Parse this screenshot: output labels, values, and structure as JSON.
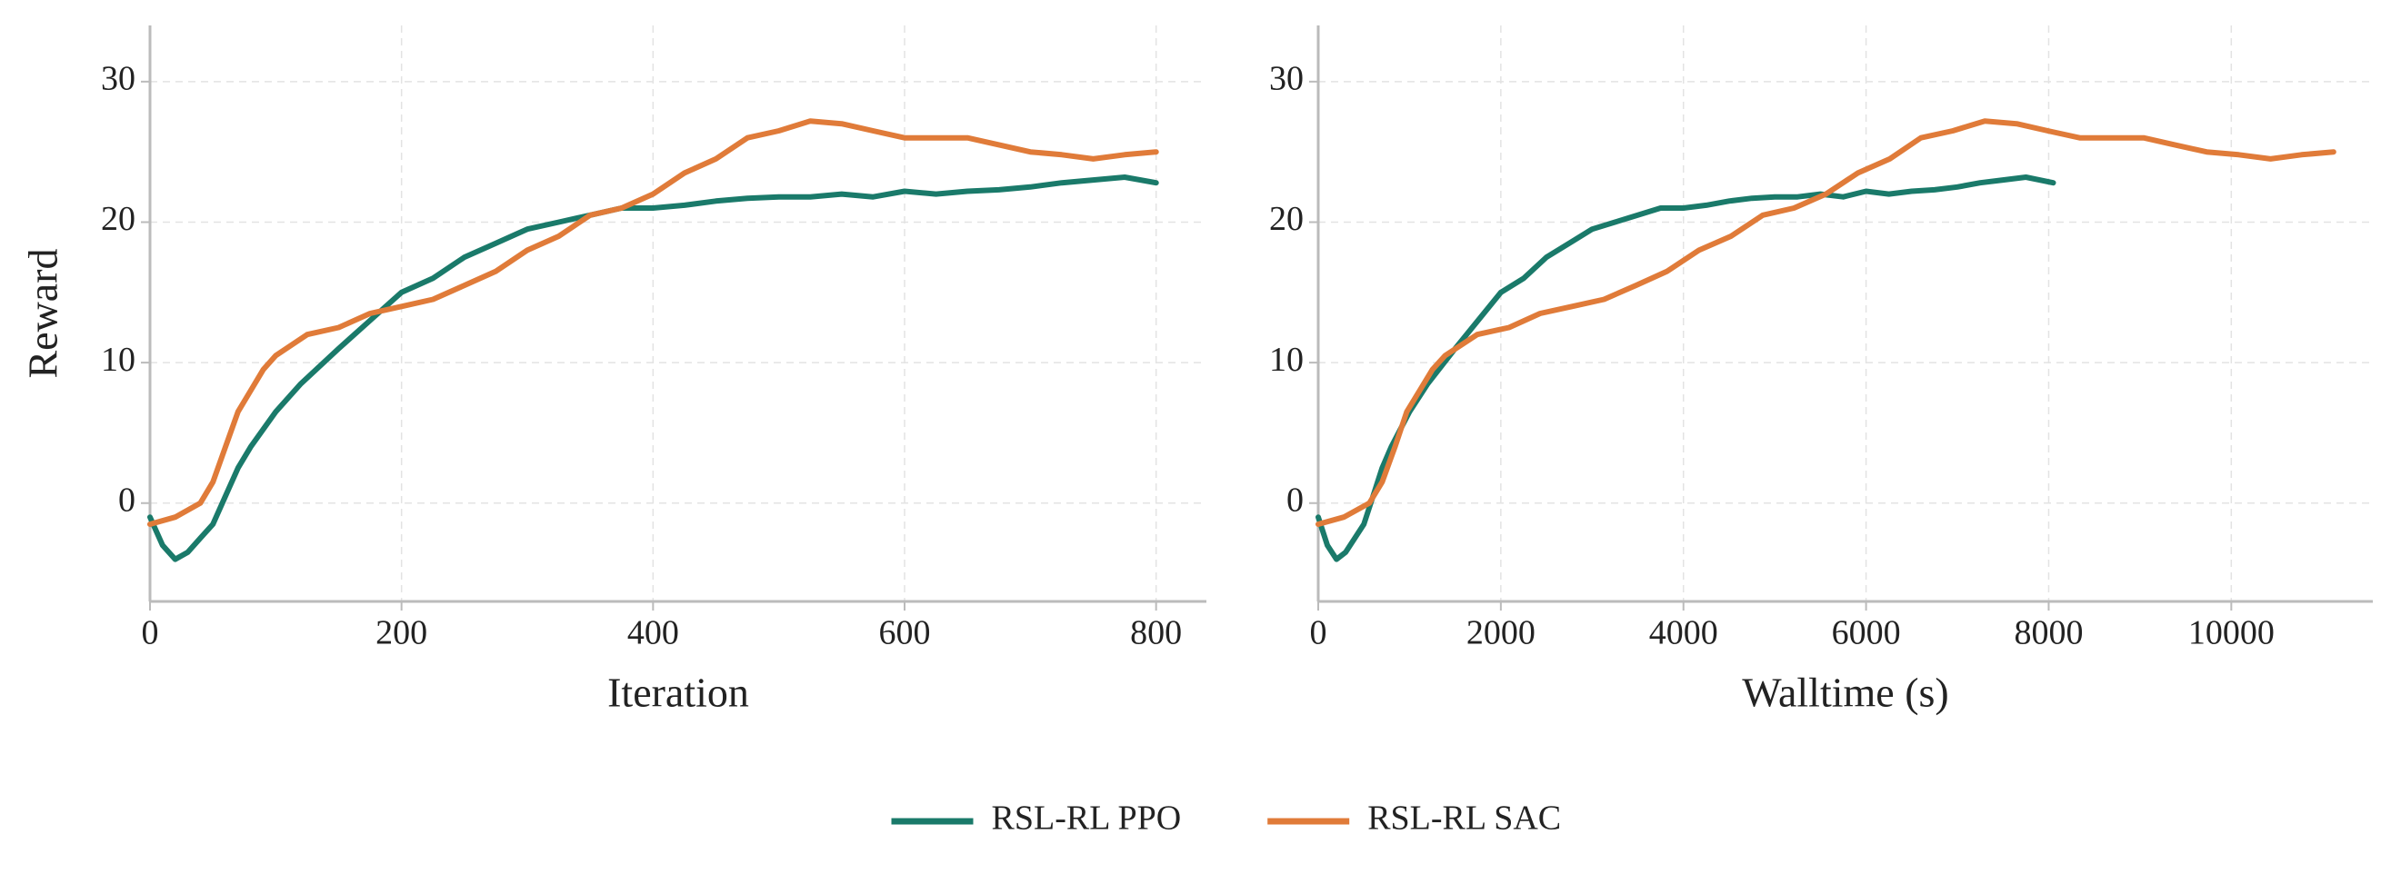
{
  "chart_data": [
    {
      "type": "line",
      "xlabel": "Iteration",
      "ylabel": "Reward",
      "xlim": [
        0,
        840
      ],
      "xticks": [
        0,
        200,
        400,
        600,
        800
      ],
      "ylim": [
        -7,
        34
      ],
      "yticks": [
        0,
        10,
        20,
        30
      ],
      "grid": true,
      "legend": "bottom",
      "series": [
        {
          "name": "RSL-RL PPO",
          "color": "#1a7a6a",
          "x": [
            0,
            10,
            20,
            30,
            40,
            50,
            60,
            70,
            80,
            100,
            120,
            150,
            175,
            200,
            225,
            250,
            275,
            300,
            325,
            350,
            375,
            400,
            425,
            450,
            475,
            500,
            525,
            550,
            575,
            600,
            625,
            650,
            675,
            700,
            725,
            750,
            775,
            800
          ],
          "values": [
            -1,
            -3,
            -4,
            -3.5,
            -2.5,
            -1.5,
            0.5,
            2.5,
            4,
            6.5,
            8.5,
            11,
            13,
            15,
            16,
            17.5,
            18.5,
            19.5,
            20,
            20.5,
            21,
            21,
            21.2,
            21.5,
            21.7,
            21.8,
            21.8,
            22,
            21.8,
            22.2,
            22,
            22.2,
            22.3,
            22.5,
            22.8,
            23,
            23.2,
            22.8
          ]
        },
        {
          "name": "RSL-RL SAC",
          "color": "#e07b39",
          "x": [
            0,
            20,
            40,
            50,
            60,
            70,
            80,
            90,
            100,
            125,
            150,
            175,
            200,
            225,
            250,
            275,
            300,
            325,
            350,
            375,
            400,
            425,
            450,
            475,
            500,
            525,
            550,
            575,
            600,
            625,
            650,
            675,
            700,
            725,
            750,
            775,
            800
          ],
          "values": [
            -1.5,
            -1,
            0,
            1.5,
            4,
            6.5,
            8,
            9.5,
            10.5,
            12,
            12.5,
            13.5,
            14,
            14.5,
            15.5,
            16.5,
            18,
            19,
            20.5,
            21,
            22,
            23.5,
            24.5,
            26,
            26.5,
            27.2,
            27,
            26.5,
            26,
            26,
            26,
            25.5,
            25,
            24.8,
            24.5,
            24.8,
            25
          ]
        }
      ]
    },
    {
      "type": "line",
      "xlabel": "Walltime (s)",
      "xlim": [
        0,
        11550
      ],
      "xticks": [
        0,
        2000,
        4000,
        6000,
        8000,
        10000
      ],
      "ylim": [
        -7,
        34
      ],
      "yticks": [
        0,
        10,
        20,
        30
      ],
      "grid": true,
      "series": [
        {
          "color": "#1a7a6a",
          "x": [
            0,
            100,
            200,
            300,
            400,
            500,
            600,
            700,
            800,
            1000,
            1200,
            1500,
            1750,
            2000,
            2250,
            2500,
            2750,
            3000,
            3250,
            3500,
            3750,
            4000,
            4250,
            4500,
            4750,
            5000,
            5250,
            5500,
            5750,
            6000,
            6250,
            6500,
            6750,
            7000,
            7250,
            7500,
            7750,
            8050
          ],
          "values": [
            -1,
            -3,
            -4,
            -3.5,
            -2.5,
            -1.5,
            0.5,
            2.5,
            4,
            6.5,
            8.5,
            11,
            13,
            15,
            16,
            17.5,
            18.5,
            19.5,
            20,
            20.5,
            21,
            21,
            21.2,
            21.5,
            21.7,
            21.8,
            21.8,
            22,
            21.8,
            22.2,
            22,
            22.2,
            22.3,
            22.5,
            22.8,
            23,
            23.2,
            22.8
          ]
        },
        {
          "color": "#e07b39",
          "x": [
            0,
            280,
            560,
            700,
            840,
            970,
            1110,
            1250,
            1390,
            1740,
            2090,
            2430,
            2780,
            3130,
            3480,
            3820,
            4170,
            4520,
            4870,
            5210,
            5560,
            5910,
            6260,
            6600,
            6950,
            7300,
            7650,
            7990,
            8340,
            8690,
            9040,
            9380,
            9730,
            10080,
            10430,
            10770,
            11120
          ],
          "values": [
            -1.5,
            -1,
            0,
            1.5,
            4,
            6.5,
            8,
            9.5,
            10.5,
            12,
            12.5,
            13.5,
            14,
            14.5,
            15.5,
            16.5,
            18,
            19,
            20.5,
            21,
            22,
            23.5,
            24.5,
            26,
            26.5,
            27.2,
            27,
            26.5,
            26,
            26,
            26,
            25.5,
            25,
            24.8,
            24.5,
            24.8,
            25
          ]
        }
      ]
    }
  ]
}
